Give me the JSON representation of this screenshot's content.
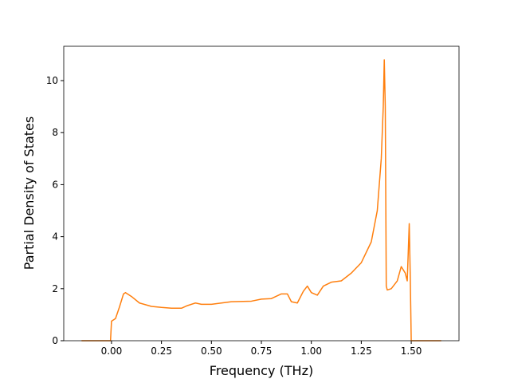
{
  "chart_data": {
    "type": "line",
    "xlabel": "Frequency (THz)",
    "ylabel": "Partial Density of States",
    "x": [
      -0.15,
      -0.005,
      0.0,
      0.02,
      0.04,
      0.06,
      0.07,
      0.1,
      0.14,
      0.2,
      0.25,
      0.3,
      0.35,
      0.38,
      0.42,
      0.45,
      0.5,
      0.55,
      0.6,
      0.7,
      0.75,
      0.8,
      0.85,
      0.88,
      0.9,
      0.93,
      0.96,
      0.98,
      1.0,
      1.03,
      1.06,
      1.1,
      1.15,
      1.2,
      1.25,
      1.3,
      1.33,
      1.35,
      1.36,
      1.365,
      1.37,
      1.375,
      1.38,
      1.4,
      1.43,
      1.45,
      1.47,
      1.48,
      1.49,
      1.495,
      1.5,
      1.65
    ],
    "series": [
      {
        "color": "#ff7f0e",
        "values": [
          0,
          0,
          0.75,
          0.85,
          1.3,
          1.8,
          1.85,
          1.7,
          1.45,
          1.32,
          1.28,
          1.25,
          1.25,
          1.35,
          1.45,
          1.4,
          1.4,
          1.45,
          1.5,
          1.52,
          1.6,
          1.62,
          1.8,
          1.8,
          1.5,
          1.45,
          1.9,
          2.1,
          1.85,
          1.75,
          2.1,
          2.25,
          2.3,
          2.6,
          3.0,
          3.8,
          5.0,
          7.0,
          9.0,
          10.8,
          9.0,
          2.1,
          1.95,
          2.0,
          2.3,
          2.85,
          2.6,
          2.3,
          4.5,
          2.5,
          0,
          0
        ]
      }
    ],
    "xlim": [
      -0.239,
      1.739
    ],
    "ylim": [
      0,
      11.32
    ],
    "xticks": [
      {
        "value": 0,
        "label": "0.00"
      },
      {
        "value": 0.25,
        "label": "0.25"
      },
      {
        "value": 0.5,
        "label": "0.50"
      },
      {
        "value": 0.75,
        "label": "0.75"
      },
      {
        "value": 1.0,
        "label": "1.00"
      },
      {
        "value": 1.25,
        "label": "1.25"
      },
      {
        "value": 1.5,
        "label": "1.50"
      }
    ],
    "yticks": [
      0,
      2,
      4,
      6,
      8,
      10
    ]
  }
}
